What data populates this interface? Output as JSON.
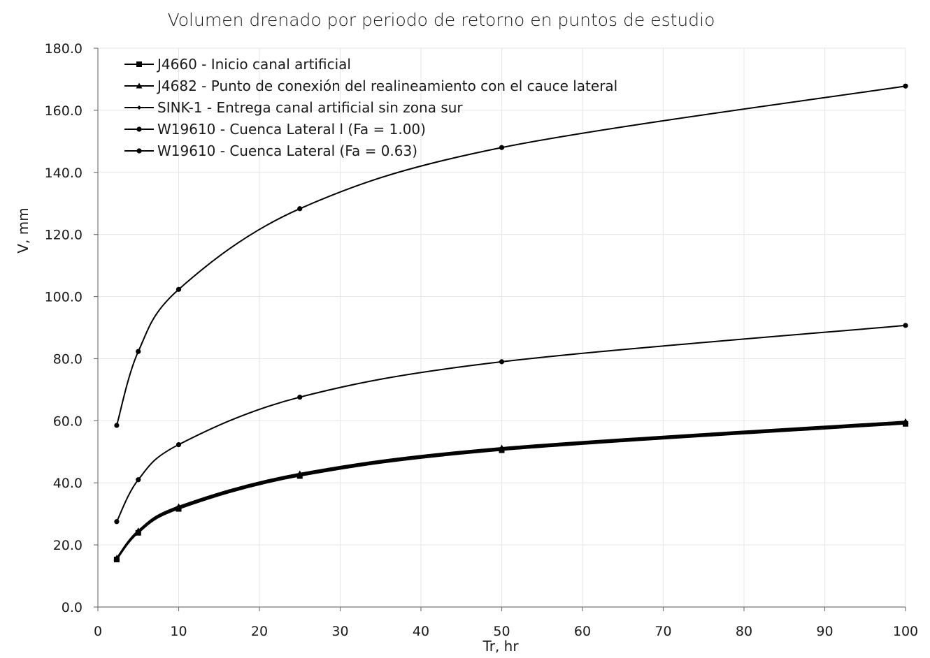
{
  "chart_data": {
    "type": "line",
    "title": "Volumen drenado por periodo de retorno en puntos de estudio",
    "xlabel": "Tr, hr",
    "ylabel": "V, mm",
    "xlim": [
      0,
      100
    ],
    "ylim": [
      0,
      180
    ],
    "x_ticks": [
      "0",
      "10",
      "20",
      "30",
      "40",
      "50",
      "60",
      "70",
      "80",
      "90",
      "100"
    ],
    "y_ticks": [
      "0.0",
      "20.0",
      "40.0",
      "60.0",
      "80.0",
      "100.0",
      "120.0",
      "140.0",
      "160.0",
      "180.0"
    ],
    "grid": true,
    "legend_position": "top-left",
    "x": [
      2.33,
      5,
      10,
      25,
      50,
      100
    ],
    "series": [
      {
        "name": "J4660 - Inicio canal artificial",
        "marker": "square",
        "values": [
          15.3,
          23.9,
          31.6,
          42.2,
          50.5,
          59.0
        ]
      },
      {
        "name": "J4682 - Punto de conexión del realineamiento con el cauce lateral",
        "marker": "triangle",
        "values": [
          15.8,
          24.6,
          32.4,
          43.0,
          51.3,
          59.8
        ]
      },
      {
        "name": "SINK-1 - Entrega canal artificial sin zona sur",
        "marker": "diamond",
        "values": [
          15.6,
          24.3,
          32.0,
          42.6,
          50.9,
          59.4
        ]
      },
      {
        "name": "W19610 - Cuenca Lateral l (Fa = 1.00)",
        "marker": "circle",
        "values": [
          58.5,
          82.3,
          102.3,
          128.3,
          148.0,
          167.8
        ]
      },
      {
        "name": "W19610 - Cuenca Lateral (Fa = 0.63)",
        "marker": "circle",
        "values": [
          27.5,
          41.0,
          52.3,
          67.6,
          79.0,
          90.7
        ]
      }
    ],
    "colors": {
      "series": "#000000",
      "grid": "#e6e6e6",
      "axis": "#777777"
    }
  }
}
